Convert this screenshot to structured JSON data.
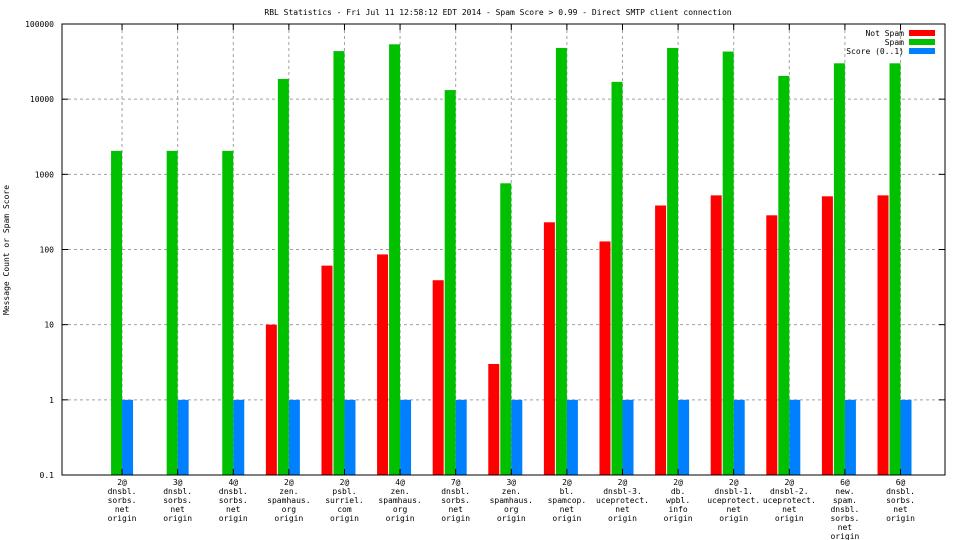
{
  "chart_data": {
    "type": "bar",
    "title": "RBL Statistics - Fri Jul 11 12:58:12 EDT 2014 - Spam Score > 0.99 - Direct SMTP client connection",
    "xlabel": "",
    "ylabel": "Message Count or Spam Score",
    "yscale": "log",
    "ylim": [
      0.1,
      100000
    ],
    "yticks": [
      "0.1",
      "1",
      "10",
      "100",
      "1000",
      "10000",
      "100000"
    ],
    "grid": true,
    "legend_position": "top-right",
    "categories": [
      [
        "2@",
        "dnsbl.",
        "sorbs.",
        "net",
        "origin"
      ],
      [
        "3@",
        "dnsbl.",
        "sorbs.",
        "net",
        "origin"
      ],
      [
        "4@",
        "dnsbl.",
        "sorbs.",
        "net",
        "origin"
      ],
      [
        "2@",
        "zen.",
        "spamhaus.",
        "org",
        "origin"
      ],
      [
        "2@",
        "psbl.",
        "surriel.",
        "com",
        "origin"
      ],
      [
        "4@",
        "zen.",
        "spamhaus.",
        "org",
        "origin"
      ],
      [
        "7@",
        "dnsbl.",
        "sorbs.",
        "net",
        "origin"
      ],
      [
        "3@",
        "zen.",
        "spamhaus.",
        "org",
        "origin"
      ],
      [
        "2@",
        "bl.",
        "spamcop.",
        "net",
        "origin"
      ],
      [
        "2@",
        "dnsbl-3.",
        "uceprotect.",
        "net",
        "origin"
      ],
      [
        "2@",
        "db.",
        "wpbl.",
        "info",
        "origin"
      ],
      [
        "2@",
        "dnsbl-1.",
        "uceprotect.",
        "net",
        "origin"
      ],
      [
        "2@",
        "dnsbl-2.",
        "uceprotect.",
        "net",
        "origin"
      ],
      [
        "6@",
        "new.",
        "spam.",
        "dnsbl.",
        "sorbs.",
        "net",
        "origin"
      ],
      [
        "6@",
        "dnsbl.",
        "sorbs.",
        "net",
        "origin"
      ]
    ],
    "series": [
      {
        "name": "Not Spam",
        "color": "#ff0000",
        "values": [
          0,
          0,
          0,
          10,
          61,
          86,
          39,
          3,
          230,
          128,
          385,
          525,
          285,
          510,
          525
        ]
      },
      {
        "name": "Spam",
        "color": "#00c000",
        "values": [
          2050,
          2050,
          2050,
          18600,
          43600,
          53700,
          13200,
          760,
          48000,
          17000,
          48000,
          43000,
          20400,
          30000,
          30000
        ]
      },
      {
        "name": "Score (0..1)",
        "color": "#0080ff",
        "values": [
          1,
          1,
          1,
          1,
          1,
          1,
          1,
          1,
          1,
          1,
          1,
          1,
          1,
          1,
          1
        ]
      }
    ]
  }
}
